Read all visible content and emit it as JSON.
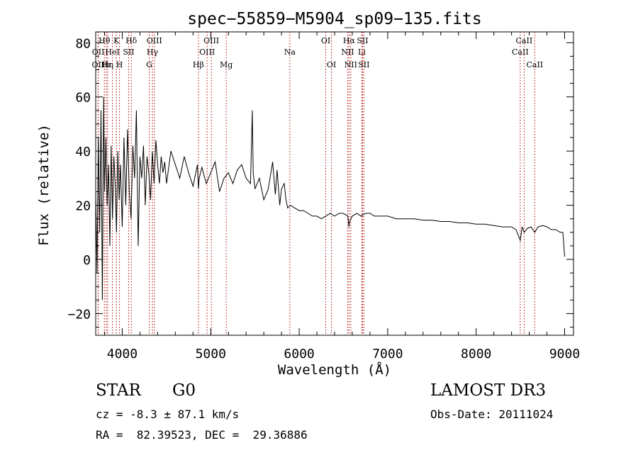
{
  "chart_data": {
    "type": "line",
    "title": "spec−55859−M5904_sp09−135.fits",
    "xlabel": "Wavelength (Å)",
    "ylabel": "Flux (relative)",
    "xlim": [
      3700,
      9100
    ],
    "ylim": [
      -28,
      84
    ],
    "x_ticks": [
      4000,
      5000,
      6000,
      7000,
      8000,
      9000
    ],
    "x_tick_labels": [
      "4000",
      "5000",
      "6000",
      "7000",
      "8000",
      "9000"
    ],
    "y_ticks": [
      -20,
      0,
      20,
      40,
      60,
      80
    ],
    "y_tick_labels": [
      "−20",
      "0",
      "20",
      "40",
      "60",
      "80"
    ],
    "grid": false,
    "series": [
      {
        "name": "flux",
        "x": [
          3700,
          3715,
          3730,
          3745,
          3760,
          3775,
          3790,
          3800,
          3815,
          3830,
          3845,
          3860,
          3875,
          3890,
          3905,
          3920,
          3935,
          3950,
          3965,
          3980,
          4000,
          4020,
          4040,
          4060,
          4080,
          4100,
          4120,
          4140,
          4160,
          4180,
          4200,
          4220,
          4240,
          4260,
          4280,
          4300,
          4320,
          4340,
          4360,
          4380,
          4400,
          4420,
          4440,
          4460,
          4480,
          4500,
          4550,
          4600,
          4650,
          4700,
          4750,
          4800,
          4850,
          4861,
          4870,
          4900,
          4950,
          5000,
          5050,
          5100,
          5150,
          5200,
          5250,
          5300,
          5350,
          5400,
          5450,
          5470,
          5480,
          5500,
          5550,
          5600,
          5650,
          5700,
          5730,
          5750,
          5780,
          5800,
          5830,
          5850,
          5870,
          5900,
          5950,
          6000,
          6050,
          6100,
          6150,
          6200,
          6250,
          6300,
          6350,
          6400,
          6450,
          6500,
          6550,
          6563,
          6570,
          6600,
          6650,
          6700,
          6750,
          6800,
          6850,
          6900,
          7000,
          7100,
          7200,
          7300,
          7400,
          7500,
          7600,
          7700,
          7800,
          7900,
          8000,
          8100,
          8200,
          8300,
          8400,
          8450,
          8498,
          8520,
          8542,
          8580,
          8620,
          8662,
          8700,
          8750,
          8800,
          8850,
          8900,
          8950,
          8980,
          9000
        ],
        "values": [
          25,
          -5,
          45,
          10,
          55,
          -15,
          60,
          25,
          45,
          20,
          35,
          5,
          42,
          15,
          38,
          28,
          10,
          40,
          22,
          35,
          12,
          45,
          20,
          48,
          25,
          15,
          42,
          30,
          55,
          5,
          38,
          30,
          42,
          20,
          38,
          32,
          22,
          40,
          28,
          44,
          35,
          28,
          38,
          32,
          36,
          28,
          40,
          35,
          30,
          38,
          32,
          27,
          35,
          26,
          30,
          34,
          28,
          32,
          36,
          25,
          30,
          32,
          28,
          33,
          35,
          30,
          28,
          55,
          32,
          26,
          30,
          22,
          26,
          36,
          24,
          33,
          20,
          26,
          28,
          22,
          19,
          20,
          19,
          18,
          18,
          17,
          16,
          16,
          15,
          16,
          17,
          16,
          17,
          17,
          16,
          12,
          14,
          16,
          17,
          16,
          17,
          17,
          16,
          16,
          16,
          15,
          15,
          15,
          14.5,
          14.5,
          14,
          14,
          13.5,
          13.5,
          13,
          13,
          12.5,
          12,
          12,
          11,
          7,
          12,
          10,
          11.5,
          12,
          10,
          12,
          12.5,
          12,
          11,
          11,
          10,
          10,
          1
        ]
      }
    ],
    "lines": [
      {
        "name": "O II",
        "label": "OII",
        "wl": 3727,
        "row": 3
      },
      {
        "name": "O II",
        "label": "OII",
        "wl": 3729,
        "row": 2
      },
      {
        "name": "H-theta",
        "label": "Hθ",
        "wl": 3798,
        "row": 1
      },
      {
        "name": "H-eta",
        "label": "Hη",
        "wl": 3835,
        "row": 3
      },
      {
        "name": "H-epsilon",
        "label": "Hε",
        "wl": 3820,
        "row": 3
      },
      {
        "name": "He I",
        "label": "HeI",
        "wl": 3889,
        "row": 2
      },
      {
        "name": "K",
        "label": "K",
        "wl": 3934,
        "row": 1
      },
      {
        "name": "H",
        "label": "H",
        "wl": 3969,
        "row": 3
      },
      {
        "name": "S II",
        "label": "SII",
        "wl": 4072,
        "row": 2
      },
      {
        "name": "H-delta",
        "label": "Hδ",
        "wl": 4102,
        "row": 1
      },
      {
        "name": "G band",
        "label": "G",
        "wl": 4305,
        "row": 3
      },
      {
        "name": "H-gamma",
        "label": "Hγ",
        "wl": 4341,
        "row": 2
      },
      {
        "name": "O III",
        "label": "OIII",
        "wl": 4363,
        "row": 1
      },
      {
        "name": "H-beta",
        "label": "Hβ",
        "wl": 4861,
        "row": 3
      },
      {
        "name": "O III",
        "label": "OIII",
        "wl": 4959,
        "row": 2
      },
      {
        "name": "O III",
        "label": "OIII",
        "wl": 5007,
        "row": 1
      },
      {
        "name": "Mg",
        "label": "Mg",
        "wl": 5175,
        "row": 3
      },
      {
        "name": "Na",
        "label": "Na",
        "wl": 5894,
        "row": 2
      },
      {
        "name": "O I",
        "label": "OI",
        "wl": 6300,
        "row": 1
      },
      {
        "name": "O I",
        "label": "OI",
        "wl": 6364,
        "row": 3
      },
      {
        "name": "N II",
        "label": "NII",
        "wl": 6548,
        "row": 2
      },
      {
        "name": "H-alpha",
        "label": "Hα",
        "wl": 6563,
        "row": 1
      },
      {
        "name": "N II",
        "label": "NII",
        "wl": 6583,
        "row": 3
      },
      {
        "name": "Li",
        "label": "Li",
        "wl": 6707,
        "row": 2
      },
      {
        "name": "S II",
        "label": "SII",
        "wl": 6716,
        "row": 1
      },
      {
        "name": "S II",
        "label": "SII",
        "wl": 6731,
        "row": 3
      },
      {
        "name": "Ca II",
        "label": "CaII",
        "wl": 8498,
        "row": 2
      },
      {
        "name": "Ca II",
        "label": "CaII",
        "wl": 8542,
        "row": 1
      },
      {
        "name": "Ca II",
        "label": "CaII",
        "wl": 8662,
        "row": 3
      }
    ]
  },
  "info": {
    "object_class": "STAR",
    "subclass": "G0",
    "survey": "LAMOST DR3",
    "redshift_line": "cz = -8.3 ± 87.1 km/s",
    "obs_date_line": "Obs-Date: 20111024",
    "coords_line": "RA =  82.39523, DEC =  29.36886"
  },
  "colors": {
    "spectrum": "#000000",
    "line_markers": "#b00000"
  }
}
